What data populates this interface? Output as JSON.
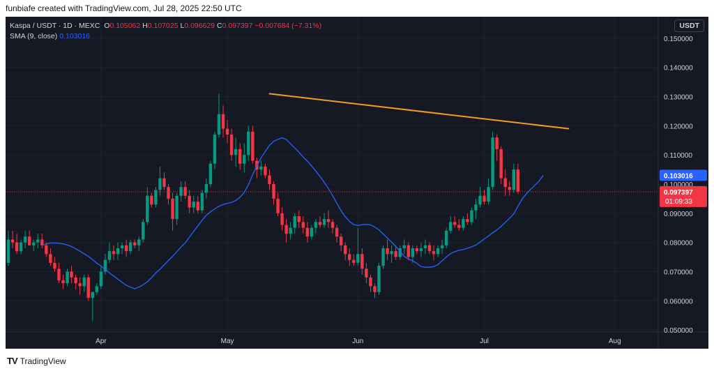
{
  "header": {
    "text": "funbiafe created with TradingView.com, Jul 28, 2025 22:50 UTC"
  },
  "legend": {
    "symbol": "Kaspa / USDT · 1D · MEXC",
    "o_label": "O",
    "o": "0.105062",
    "h_label": "H",
    "h": "0.107025",
    "l_label": "L",
    "l": "0.096629",
    "c_label": "C",
    "c": "0.097397",
    "change": "−0.007684 (−7.31%)",
    "sma_label": "SMA (9, close)",
    "sma_value": "0.103016"
  },
  "currency_button": "USDT",
  "footer": {
    "brand": "TradingView",
    "logo": "TV"
  },
  "colors": {
    "up": "#089981",
    "down": "#f23645",
    "sma": "#2962ff",
    "trendline": "#f59a23",
    "background": "#151924",
    "grid": "#1e222d",
    "axis_text": "#d1d4dc"
  },
  "chart_data": {
    "type": "candlestick",
    "title": "Kaspa / USDT · 1D · MEXC",
    "currency": "USDT",
    "ylim": [
      0.045,
      0.155
    ],
    "y_ticks": [
      "0.150000",
      "0.140000",
      "0.130000",
      "0.120000",
      "0.110000",
      "0.100000",
      "0.090000",
      "0.080000",
      "0.070000",
      "0.060000",
      "0.050000"
    ],
    "x_ticks": [
      {
        "label": "Apr",
        "date": "2025-04-01"
      },
      {
        "label": "May",
        "date": "2025-05-01"
      },
      {
        "label": "Jun",
        "date": "2025-06-01"
      },
      {
        "label": "Jul",
        "date": "2025-07-01"
      },
      {
        "label": "Aug",
        "date": "2025-08-01"
      }
    ],
    "last_price": "0.097397",
    "countdown": "01:09:33",
    "sma_last": "0.103016",
    "trendline": {
      "from": {
        "date": "2025-05-11",
        "price": 0.131
      },
      "to": {
        "date": "2025-07-21",
        "price": 0.119
      }
    },
    "start_date": "2025-03-10",
    "candles": [
      [
        0.073,
        0.084,
        0.072,
        0.081
      ],
      [
        0.081,
        0.084,
        0.078,
        0.08
      ],
      [
        0.08,
        0.083,
        0.076,
        0.077
      ],
      [
        0.077,
        0.081,
        0.076,
        0.08
      ],
      [
        0.08,
        0.084,
        0.078,
        0.082
      ],
      [
        0.082,
        0.084,
        0.079,
        0.079
      ],
      [
        0.079,
        0.081,
        0.077,
        0.08
      ],
      [
        0.08,
        0.083,
        0.078,
        0.081
      ],
      [
        0.081,
        0.083,
        0.078,
        0.079
      ],
      [
        0.079,
        0.08,
        0.075,
        0.076
      ],
      [
        0.076,
        0.078,
        0.072,
        0.073
      ],
      [
        0.073,
        0.075,
        0.07,
        0.071
      ],
      [
        0.071,
        0.073,
        0.066,
        0.067
      ],
      [
        0.067,
        0.069,
        0.064,
        0.066
      ],
      [
        0.066,
        0.071,
        0.065,
        0.07
      ],
      [
        0.07,
        0.072,
        0.066,
        0.068
      ],
      [
        0.068,
        0.069,
        0.064,
        0.066
      ],
      [
        0.066,
        0.068,
        0.062,
        0.065
      ],
      [
        0.065,
        0.069,
        0.063,
        0.068
      ],
      [
        0.068,
        0.069,
        0.06,
        0.061
      ],
      [
        0.061,
        0.063,
        0.053,
        0.063
      ],
      [
        0.063,
        0.066,
        0.062,
        0.065
      ],
      [
        0.065,
        0.072,
        0.064,
        0.07
      ],
      [
        0.07,
        0.076,
        0.069,
        0.074
      ],
      [
        0.074,
        0.08,
        0.073,
        0.077
      ],
      [
        0.077,
        0.079,
        0.074,
        0.076
      ],
      [
        0.076,
        0.08,
        0.074,
        0.078
      ],
      [
        0.078,
        0.08,
        0.076,
        0.079
      ],
      [
        0.079,
        0.081,
        0.075,
        0.077
      ],
      [
        0.077,
        0.081,
        0.076,
        0.08
      ],
      [
        0.08,
        0.081,
        0.078,
        0.079
      ],
      [
        0.079,
        0.082,
        0.077,
        0.081
      ],
      [
        0.081,
        0.088,
        0.08,
        0.087
      ],
      [
        0.087,
        0.099,
        0.086,
        0.096
      ],
      [
        0.096,
        0.097,
        0.092,
        0.093
      ],
      [
        0.093,
        0.099,
        0.092,
        0.098
      ],
      [
        0.098,
        0.106,
        0.096,
        0.102
      ],
      [
        0.102,
        0.104,
        0.098,
        0.099
      ],
      [
        0.099,
        0.1,
        0.093,
        0.095
      ],
      [
        0.095,
        0.097,
        0.084,
        0.088
      ],
      [
        0.088,
        0.097,
        0.086,
        0.096
      ],
      [
        0.096,
        0.101,
        0.094,
        0.099
      ],
      [
        0.099,
        0.101,
        0.095,
        0.096
      ],
      [
        0.096,
        0.098,
        0.09,
        0.092
      ],
      [
        0.092,
        0.096,
        0.09,
        0.094
      ],
      [
        0.094,
        0.096,
        0.09,
        0.091
      ],
      [
        0.091,
        0.098,
        0.09,
        0.097
      ],
      [
        0.097,
        0.102,
        0.095,
        0.1
      ],
      [
        0.1,
        0.108,
        0.099,
        0.107
      ],
      [
        0.107,
        0.118,
        0.105,
        0.117
      ],
      [
        0.117,
        0.131,
        0.116,
        0.124
      ],
      [
        0.124,
        0.127,
        0.116,
        0.119
      ],
      [
        0.119,
        0.122,
        0.114,
        0.117
      ],
      [
        0.117,
        0.119,
        0.108,
        0.11
      ],
      [
        0.11,
        0.116,
        0.106,
        0.112
      ],
      [
        0.112,
        0.114,
        0.105,
        0.107
      ],
      [
        0.107,
        0.114,
        0.104,
        0.11
      ],
      [
        0.11,
        0.12,
        0.108,
        0.118
      ],
      [
        0.118,
        0.12,
        0.107,
        0.108
      ],
      [
        0.108,
        0.109,
        0.102,
        0.105
      ],
      [
        0.105,
        0.108,
        0.103,
        0.106
      ],
      [
        0.106,
        0.107,
        0.102,
        0.103
      ],
      [
        0.103,
        0.105,
        0.098,
        0.1
      ],
      [
        0.1,
        0.101,
        0.093,
        0.095
      ],
      [
        0.095,
        0.097,
        0.089,
        0.09
      ],
      [
        0.09,
        0.092,
        0.084,
        0.086
      ],
      [
        0.086,
        0.088,
        0.08,
        0.083
      ],
      [
        0.083,
        0.087,
        0.081,
        0.085
      ],
      [
        0.085,
        0.09,
        0.083,
        0.089
      ],
      [
        0.089,
        0.091,
        0.085,
        0.087
      ],
      [
        0.087,
        0.089,
        0.083,
        0.085
      ],
      [
        0.085,
        0.087,
        0.08,
        0.082
      ],
      [
        0.082,
        0.086,
        0.081,
        0.085
      ],
      [
        0.085,
        0.088,
        0.083,
        0.087
      ],
      [
        0.087,
        0.089,
        0.085,
        0.086
      ],
      [
        0.086,
        0.09,
        0.085,
        0.088
      ],
      [
        0.088,
        0.091,
        0.085,
        0.087
      ],
      [
        0.087,
        0.088,
        0.083,
        0.085
      ],
      [
        0.085,
        0.086,
        0.08,
        0.082
      ],
      [
        0.082,
        0.083,
        0.077,
        0.079
      ],
      [
        0.079,
        0.08,
        0.074,
        0.076
      ],
      [
        0.076,
        0.078,
        0.072,
        0.074
      ],
      [
        0.074,
        0.076,
        0.072,
        0.073
      ],
      [
        0.073,
        0.085,
        0.072,
        0.076
      ],
      [
        0.076,
        0.078,
        0.069,
        0.071
      ],
      [
        0.071,
        0.073,
        0.066,
        0.068
      ],
      [
        0.068,
        0.069,
        0.063,
        0.065
      ],
      [
        0.065,
        0.066,
        0.061,
        0.063
      ],
      [
        0.063,
        0.073,
        0.062,
        0.072
      ],
      [
        0.072,
        0.079,
        0.071,
        0.078
      ],
      [
        0.078,
        0.081,
        0.074,
        0.076
      ],
      [
        0.076,
        0.079,
        0.073,
        0.077
      ],
      [
        0.077,
        0.079,
        0.074,
        0.075
      ],
      [
        0.075,
        0.079,
        0.074,
        0.078
      ],
      [
        0.078,
        0.081,
        0.076,
        0.079
      ],
      [
        0.079,
        0.08,
        0.074,
        0.075
      ],
      [
        0.075,
        0.079,
        0.073,
        0.078
      ],
      [
        0.078,
        0.079,
        0.076,
        0.077
      ],
      [
        0.077,
        0.08,
        0.075,
        0.078
      ],
      [
        0.078,
        0.081,
        0.076,
        0.079
      ],
      [
        0.079,
        0.08,
        0.076,
        0.077
      ],
      [
        0.077,
        0.079,
        0.074,
        0.076
      ],
      [
        0.076,
        0.079,
        0.075,
        0.078
      ],
      [
        0.078,
        0.081,
        0.076,
        0.079
      ],
      [
        0.079,
        0.085,
        0.078,
        0.084
      ],
      [
        0.084,
        0.089,
        0.083,
        0.087
      ],
      [
        0.087,
        0.089,
        0.085,
        0.086
      ],
      [
        0.086,
        0.088,
        0.084,
        0.085
      ],
      [
        0.085,
        0.089,
        0.084,
        0.088
      ],
      [
        0.088,
        0.09,
        0.086,
        0.087
      ],
      [
        0.087,
        0.092,
        0.086,
        0.091
      ],
      [
        0.091,
        0.095,
        0.088,
        0.093
      ],
      [
        0.093,
        0.099,
        0.092,
        0.096
      ],
      [
        0.096,
        0.098,
        0.093,
        0.094
      ],
      [
        0.094,
        0.102,
        0.093,
        0.099
      ],
      [
        0.099,
        0.118,
        0.098,
        0.116
      ],
      [
        0.116,
        0.117,
        0.108,
        0.112
      ],
      [
        0.112,
        0.113,
        0.1,
        0.102
      ],
      [
        0.102,
        0.105,
        0.096,
        0.099
      ],
      [
        0.099,
        0.101,
        0.096,
        0.098
      ],
      [
        0.098,
        0.107,
        0.097,
        0.105
      ],
      [
        0.105,
        0.107,
        0.0966,
        0.0974
      ]
    ],
    "sma_9": [
      0.079,
      0.0795,
      0.0798,
      0.0798,
      0.0797,
      0.0795,
      0.0791,
      0.0786,
      0.0778,
      0.077,
      0.0761,
      0.0752,
      0.0741,
      0.0729,
      0.0719,
      0.0707,
      0.0695,
      0.0685,
      0.0674,
      0.0663,
      0.0653,
      0.0647,
      0.0641,
      0.0647,
      0.0655,
      0.0665,
      0.0679,
      0.0695,
      0.0708,
      0.0723,
      0.0738,
      0.0752,
      0.0768,
      0.0784,
      0.0799,
      0.0818,
      0.0838,
      0.0857,
      0.0876,
      0.0893,
      0.0905,
      0.0915,
      0.0924,
      0.093,
      0.0934,
      0.0937,
      0.0944,
      0.0955,
      0.0971,
      0.0998,
      0.1032,
      0.1062,
      0.109,
      0.1112,
      0.1133,
      0.1147,
      0.1153,
      0.1159,
      0.1153,
      0.1138,
      0.1124,
      0.1109,
      0.1093,
      0.1079,
      0.1062,
      0.1045,
      0.1026,
      0.1006,
      0.0985,
      0.096,
      0.0934,
      0.0909,
      0.0888,
      0.0872,
      0.0861,
      0.0858,
      0.0861,
      0.0862,
      0.086,
      0.0853,
      0.0843,
      0.0829,
      0.0815,
      0.0801,
      0.0786,
      0.077,
      0.0752,
      0.0743,
      0.0737,
      0.0728,
      0.0717,
      0.0715,
      0.0715,
      0.0717,
      0.0724,
      0.0737,
      0.075,
      0.0762,
      0.0768,
      0.0773,
      0.0776,
      0.078,
      0.0785,
      0.0791,
      0.0801,
      0.0812,
      0.0822,
      0.0833,
      0.0843,
      0.0855,
      0.0869,
      0.0883,
      0.0898,
      0.0924,
      0.0949,
      0.0967,
      0.0982,
      0.0996,
      0.101,
      0.103
    ]
  }
}
